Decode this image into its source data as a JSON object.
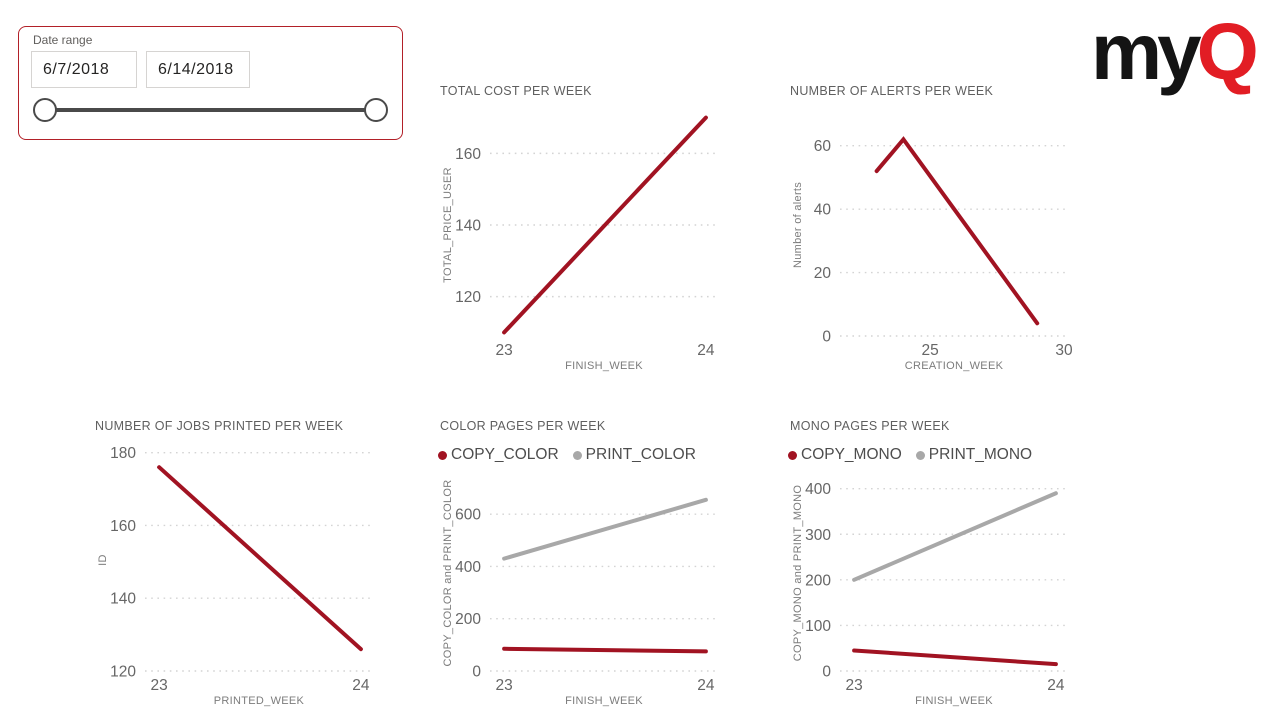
{
  "slicer": {
    "label": "Date range",
    "start_date": "6/7/2018",
    "end_date": "6/14/2018",
    "border_color": "#B22028"
  },
  "logo": {
    "text_black": "my",
    "text_red": "Q",
    "black_color": "#141414",
    "red_color": "#E21D24"
  },
  "colors": {
    "series_red": "#A11322",
    "series_gray": "#A8A8A8",
    "gridline": "#D4D4D4",
    "tick_text": "#666666",
    "axis_title_text": "#7C7C7C"
  },
  "chart_data": [
    {
      "type": "line",
      "title": "TOTAL COST PER WEEK",
      "xlabel": "FINISH_WEEK",
      "ylabel": "TOTAL_PRICE_USER",
      "xlim": [
        22.93,
        24.06
      ],
      "ylim": [
        109,
        171
      ],
      "x_ticks": [
        23,
        24
      ],
      "y_ticks": [
        120,
        140,
        160
      ],
      "grid": "horizontal-dotted",
      "legend": null,
      "series": [
        {
          "name": "TOTAL_PRICE_USER",
          "color": "#A11322",
          "x": [
            23,
            24
          ],
          "y": [
            110,
            170
          ]
        }
      ]
    },
    {
      "type": "line",
      "title": "NUMBER OF ALERTS PER WEEK",
      "xlabel": "CREATION_WEEK",
      "ylabel": "Number of alerts",
      "xlim": [
        21.63,
        30.15
      ],
      "ylim": [
        0,
        70
      ],
      "x_ticks": [
        25,
        30
      ],
      "y_ticks": [
        0,
        20,
        40,
        60
      ],
      "grid": "horizontal-dotted",
      "legend": null,
      "series": [
        {
          "name": "Number of alerts",
          "color": "#A11322",
          "x": [
            23,
            24,
            29
          ],
          "y": [
            52,
            62,
            4
          ]
        }
      ]
    },
    {
      "type": "line",
      "title": "NUMBER OF JOBS PRINTED PER WEEK",
      "xlabel": "PRINTED_WEEK",
      "ylabel": "ID",
      "xlim": [
        22.93,
        24.06
      ],
      "ylim": [
        120,
        181
      ],
      "x_ticks": [
        23,
        24
      ],
      "y_ticks": [
        120,
        140,
        160,
        180
      ],
      "grid": "horizontal-dotted",
      "legend": null,
      "series": [
        {
          "name": "ID",
          "color": "#A11322",
          "x": [
            23,
            24
          ],
          "y": [
            176,
            126
          ]
        }
      ]
    },
    {
      "type": "line",
      "title": "COLOR PAGES PER WEEK",
      "xlabel": "FINISH_WEEK",
      "ylabel": "COPY_COLOR and PRINT_COLOR",
      "xlim": [
        22.93,
        24.06
      ],
      "ylim": [
        0,
        750
      ],
      "x_ticks": [
        23,
        24
      ],
      "y_ticks": [
        0,
        200,
        400,
        600
      ],
      "grid": "horizontal-dotted",
      "legend": [
        {
          "label": "COPY_COLOR",
          "color": "#A11322"
        },
        {
          "label": "PRINT_COLOR",
          "color": "#A8A8A8"
        }
      ],
      "series": [
        {
          "name": "COPY_COLOR",
          "color": "#A11322",
          "x": [
            23,
            24
          ],
          "y": [
            85,
            75
          ]
        },
        {
          "name": "PRINT_COLOR",
          "color": "#A8A8A8",
          "x": [
            23,
            24
          ],
          "y": [
            430,
            655
          ]
        }
      ]
    },
    {
      "type": "line",
      "title": "MONO PAGES PER WEEK",
      "xlabel": "FINISH_WEEK",
      "ylabel": "COPY_MONO and PRINT_MONO",
      "xlim": [
        22.93,
        24.06
      ],
      "ylim": [
        0,
        430
      ],
      "x_ticks": [
        23,
        24
      ],
      "y_ticks": [
        0,
        100,
        200,
        300,
        400
      ],
      "grid": "horizontal-dotted",
      "legend": [
        {
          "label": "COPY_MONO",
          "color": "#A11322"
        },
        {
          "label": "PRINT_MONO",
          "color": "#A8A8A8"
        }
      ],
      "series": [
        {
          "name": "COPY_MONO",
          "color": "#A11322",
          "x": [
            23,
            24
          ],
          "y": [
            45,
            15
          ]
        },
        {
          "name": "PRINT_MONO",
          "color": "#A8A8A8",
          "x": [
            23,
            24
          ],
          "y": [
            200,
            390
          ]
        }
      ]
    }
  ]
}
